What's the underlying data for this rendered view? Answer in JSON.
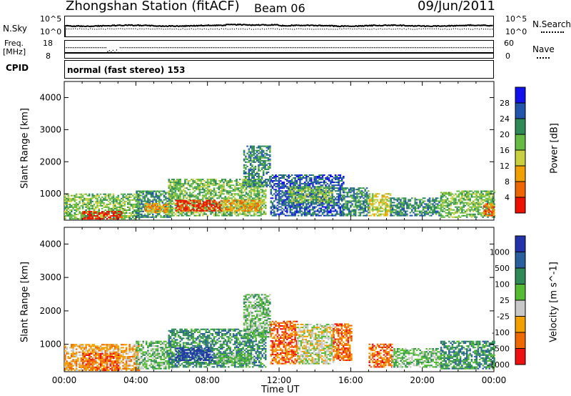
{
  "header": {
    "station": "Zhongshan Station (fitACF)",
    "beam": "Beam 06",
    "date": "09/Jun/2011"
  },
  "strip1": {
    "left_label": "N.Sky",
    "right_label": "N.Search",
    "ticks_left": [
      "10^5",
      "10^0"
    ],
    "ticks_right": [
      "10^5",
      "10^0"
    ]
  },
  "strip2": {
    "left_label_1": "Freq.",
    "left_label_2": "[MHz]",
    "right_label": "Nave",
    "ticks_left": [
      "18",
      "8"
    ],
    "ticks_right": [
      "60",
      "0"
    ]
  },
  "cpid": {
    "label": "CPID",
    "text": "normal (fast stereo) 153"
  },
  "colors": {
    "power": [
      "#1111ee",
      "#2255aa",
      "#2e8b57",
      "#66bb44",
      "#c8d040",
      "#f0a000",
      "#ee6600",
      "#ee1100"
    ],
    "velocity": [
      "#2233aa",
      "#2a5f9e",
      "#2e8b57",
      "#55bb33",
      "#c8c8c8",
      "#f2a000",
      "#ee6a00",
      "#ee1111"
    ]
  },
  "chart_data": [
    {
      "type": "heatmap",
      "title": "",
      "xlabel": "",
      "ylabel": "Slant Range [km]",
      "xlim": [
        "00:00",
        "24:00"
      ],
      "ylim": [
        180,
        4500
      ],
      "yticks": [
        "1000",
        "2000",
        "3000",
        "4000"
      ],
      "colorbar_label": "Power [dB]",
      "colorbar_ticks": [
        "28",
        "24",
        "20",
        "16",
        "12",
        "8",
        "4"
      ],
      "regions": [
        {
          "t0": 0.0,
          "t1": 4.2,
          "r0": 200,
          "r1": 1000,
          "v": 3
        },
        {
          "t0": 1.0,
          "t1": 3.2,
          "r0": 200,
          "r1": 450,
          "v": 7
        },
        {
          "t0": 4.0,
          "t1": 6.0,
          "r0": 250,
          "r1": 1100,
          "v": 2
        },
        {
          "t0": 4.5,
          "t1": 5.8,
          "r0": 400,
          "r1": 700,
          "v": 5
        },
        {
          "t0": 5.8,
          "t1": 11.2,
          "r0": 300,
          "r1": 1450,
          "v": 3
        },
        {
          "t0": 6.2,
          "t1": 8.8,
          "r0": 450,
          "r1": 800,
          "v": 7
        },
        {
          "t0": 8.8,
          "t1": 11.0,
          "r0": 450,
          "r1": 800,
          "v": 5
        },
        {
          "t0": 10.0,
          "t1": 11.5,
          "r0": 1200,
          "r1": 2500,
          "v": 2
        },
        {
          "t0": 11.5,
          "t1": 15.6,
          "r0": 300,
          "r1": 1600,
          "v": 1
        },
        {
          "t0": 12.5,
          "t1": 15.0,
          "r0": 700,
          "r1": 1200,
          "v": 3
        },
        {
          "t0": 15.5,
          "t1": 17.0,
          "r0": 300,
          "r1": 1200,
          "v": 2
        },
        {
          "t0": 17.0,
          "t1": 18.2,
          "r0": 300,
          "r1": 1000,
          "v": 4
        },
        {
          "t0": 18.2,
          "t1": 21.0,
          "r0": 300,
          "r1": 850,
          "v": 2
        },
        {
          "t0": 21.0,
          "t1": 24.0,
          "r0": 250,
          "r1": 1100,
          "v": 3
        },
        {
          "t0": 23.4,
          "t1": 24.0,
          "r0": 300,
          "r1": 700,
          "v": 6
        }
      ]
    },
    {
      "type": "heatmap",
      "title": "",
      "xlabel": "Time UT",
      "ylabel": "Slant Range [km]",
      "xlim": [
        "00:00",
        "24:00"
      ],
      "ylim": [
        180,
        4500
      ],
      "xticks": [
        "00:00",
        "04:00",
        "08:00",
        "12:00",
        "16:00",
        "20:00",
        "00:00"
      ],
      "yticks": [
        "1000",
        "2000",
        "3000",
        "4000"
      ],
      "colorbar_label": "Velocity [m s^-1]",
      "colorbar_ticks": [
        "1000",
        "500",
        "100",
        "25",
        "-25",
        "-100",
        "-500",
        "-1000"
      ],
      "regions": [
        {
          "t0": 0.0,
          "t1": 4.2,
          "r0": 200,
          "r1": 1000,
          "v": 5
        },
        {
          "t0": 1.0,
          "t1": 3.0,
          "r0": 200,
          "r1": 700,
          "v": 6
        },
        {
          "t0": 4.0,
          "t1": 6.0,
          "r0": 250,
          "r1": 1100,
          "v": 3
        },
        {
          "t0": 5.8,
          "t1": 11.2,
          "r0": 300,
          "r1": 1450,
          "v": 2
        },
        {
          "t0": 6.2,
          "t1": 8.2,
          "r0": 500,
          "r1": 900,
          "v": 0
        },
        {
          "t0": 8.5,
          "t1": 10.5,
          "r0": 400,
          "r1": 700,
          "v": 3
        },
        {
          "t0": 10.0,
          "t1": 11.5,
          "r0": 1200,
          "r1": 2500,
          "v": 3
        },
        {
          "t0": 11.5,
          "t1": 13.0,
          "r0": 400,
          "r1": 1700,
          "v": 6
        },
        {
          "t0": 13.0,
          "t1": 15.0,
          "r0": 400,
          "r1": 1600,
          "v": 4
        },
        {
          "t0": 15.0,
          "t1": 16.0,
          "r0": 500,
          "r1": 1600,
          "v": 6
        },
        {
          "t0": 17.0,
          "t1": 18.3,
          "r0": 300,
          "r1": 1000,
          "v": 6
        },
        {
          "t0": 18.3,
          "t1": 21.0,
          "r0": 300,
          "r1": 850,
          "v": 3
        },
        {
          "t0": 21.0,
          "t1": 24.0,
          "r0": 250,
          "r1": 1100,
          "v": 2
        }
      ]
    }
  ]
}
